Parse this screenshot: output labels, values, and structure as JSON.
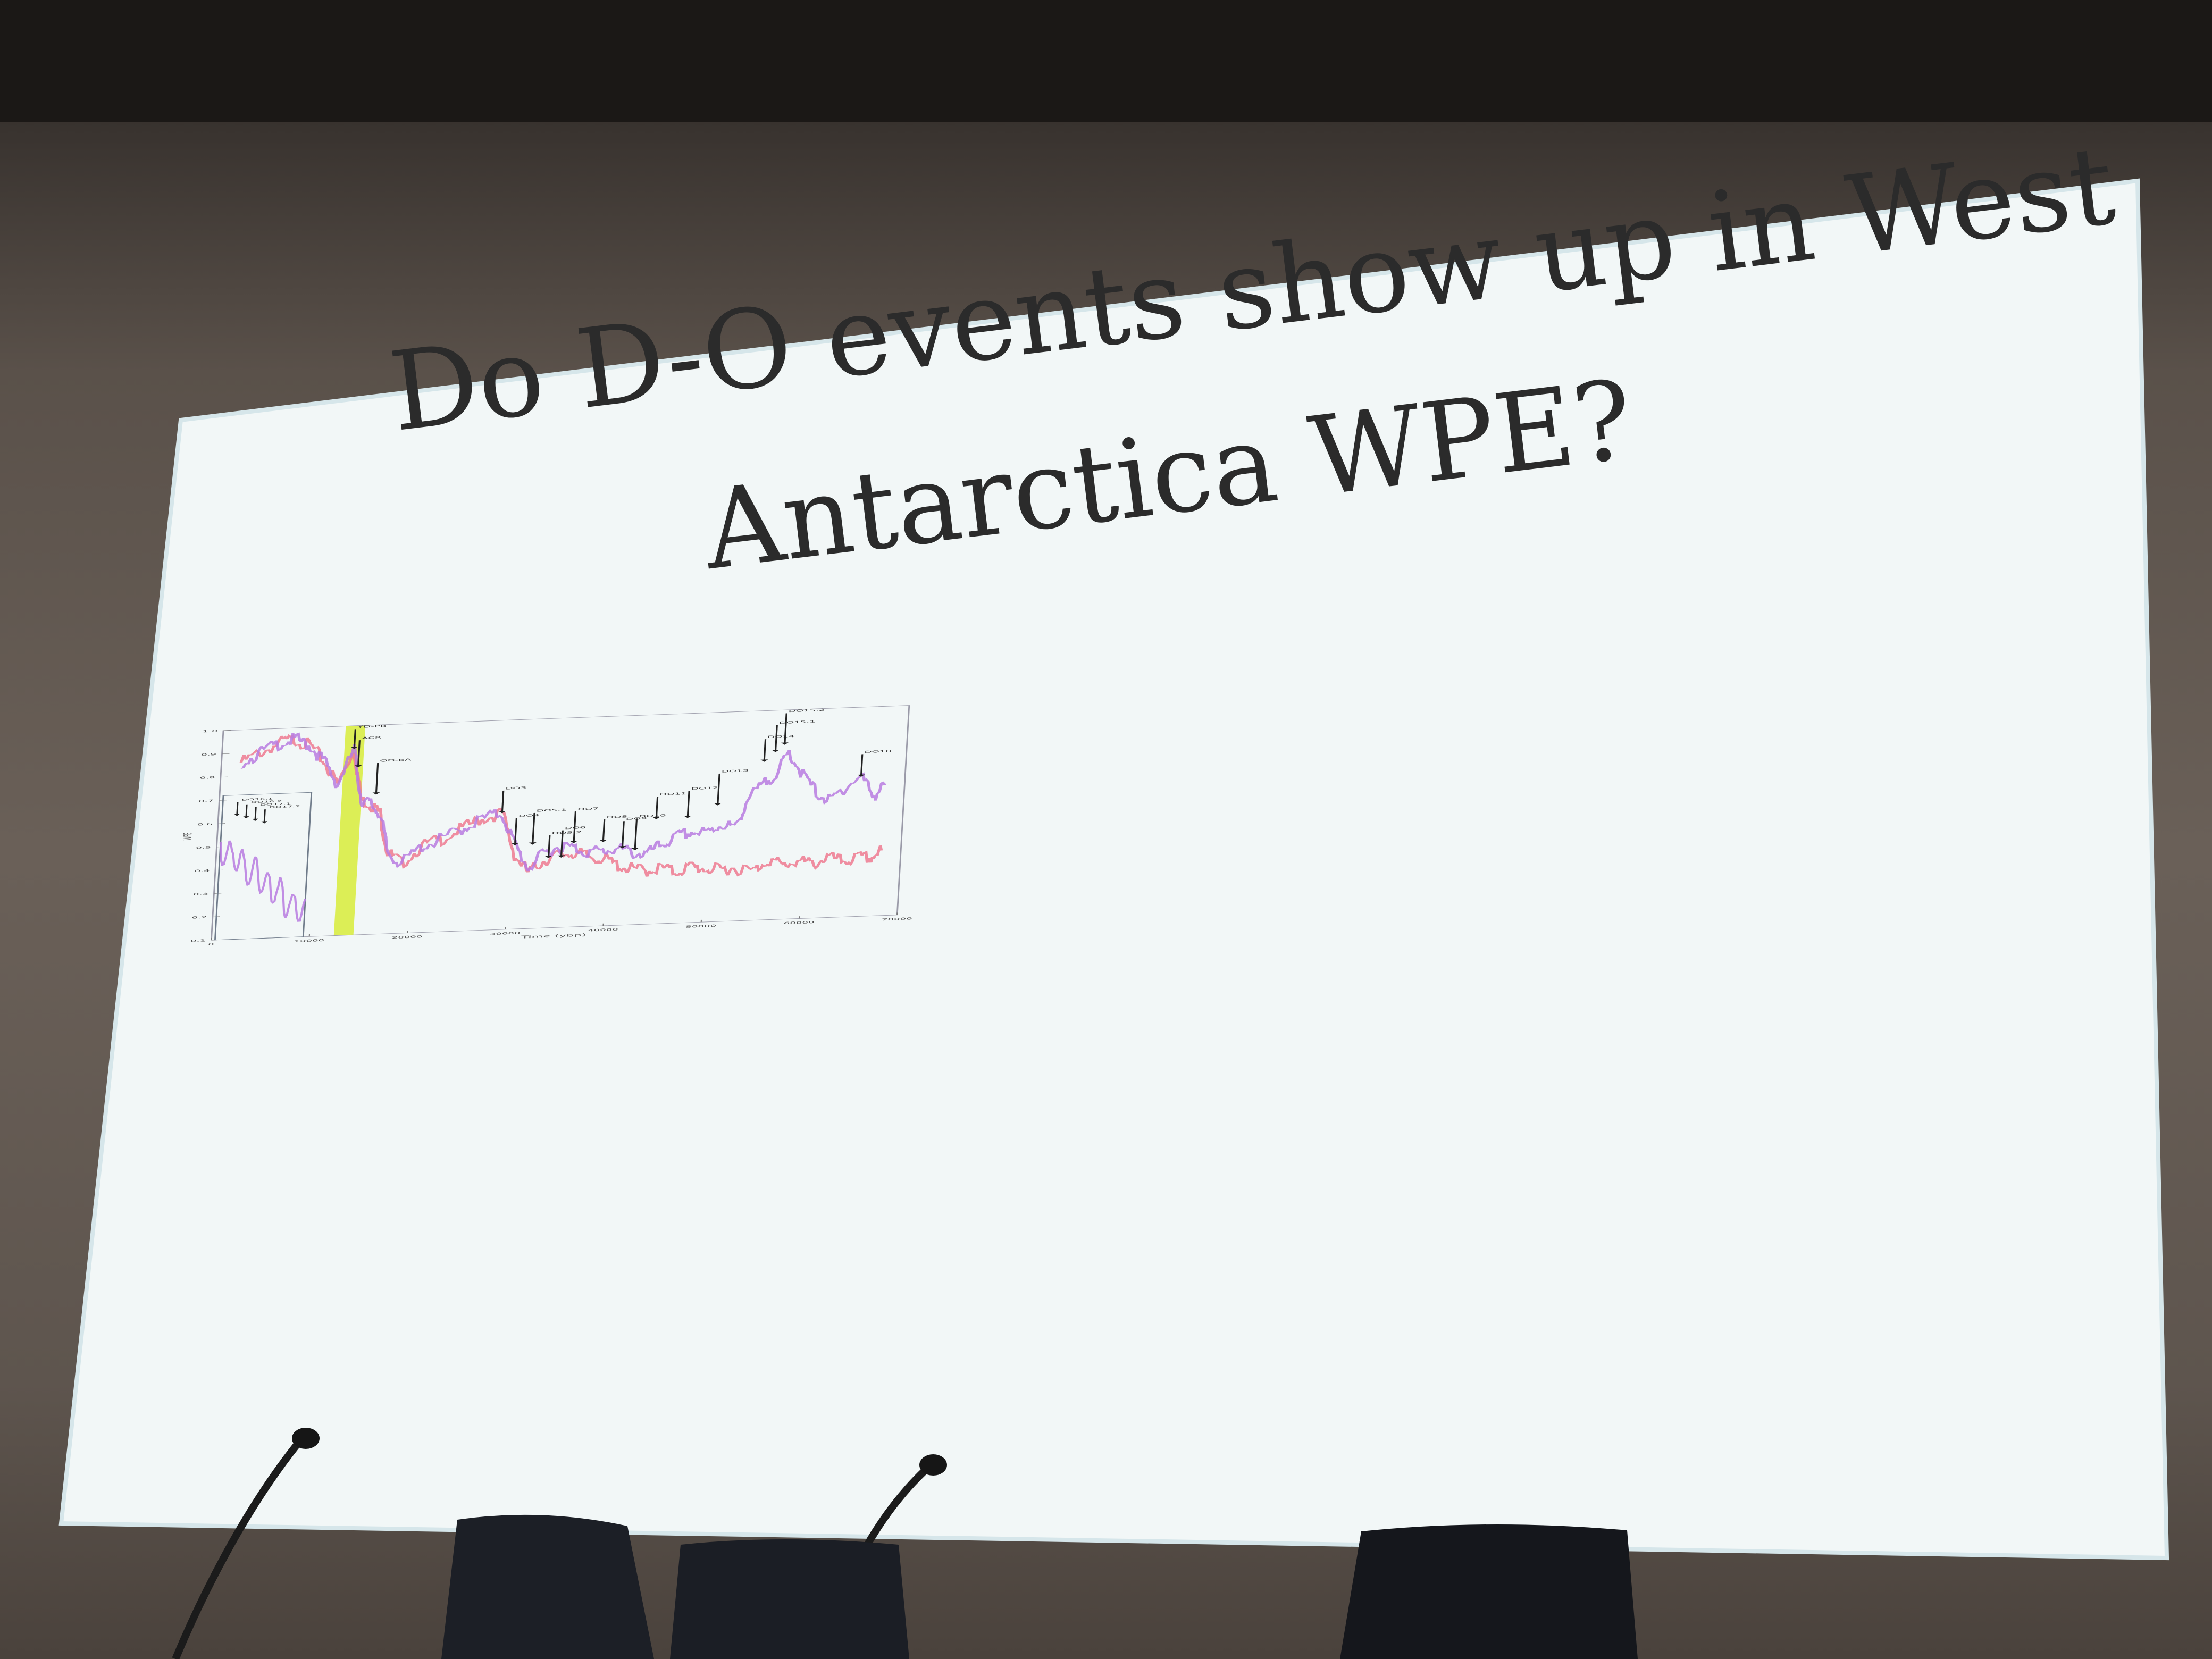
{
  "slide": {
    "title_line1": "Do D-O events show up in West",
    "title_line2": "Antarctica WPE?"
  },
  "chart_data": {
    "type": "line",
    "xlabel": "Time (ybp)",
    "ylabel": "WPE",
    "xlim": [
      0,
      70000
    ],
    "ylim": [
      0.1,
      1.0
    ],
    "xticks": [
      0,
      10000,
      20000,
      30000,
      40000,
      50000,
      60000,
      70000
    ],
    "yticks": [
      0.1,
      0.2,
      0.3,
      0.4,
      0.5,
      0.6,
      0.7,
      0.8,
      0.9,
      1.0
    ],
    "series": [
      {
        "color": "#ee7a90",
        "x": [
          2000,
          4000,
          6000,
          7500,
          9000,
          10500,
          12000,
          13500,
          14500,
          15500,
          16500,
          17500,
          19000,
          21000,
          23000,
          25000,
          27000,
          29000,
          30500,
          32000,
          33500,
          35000,
          36500,
          38000,
          39500,
          41000,
          42500,
          44000,
          45500,
          47000,
          48500,
          50000,
          51500,
          53000,
          55000,
          56500,
          58000,
          59500,
          61000,
          62500,
          64000,
          65500,
          67000,
          68000
        ],
        "y": [
          0.86,
          0.9,
          0.94,
          0.95,
          0.92,
          0.85,
          0.75,
          0.9,
          0.68,
          0.66,
          0.62,
          0.45,
          0.4,
          0.47,
          0.5,
          0.54,
          0.58,
          0.6,
          0.42,
          0.34,
          0.39,
          0.41,
          0.42,
          0.4,
          0.39,
          0.36,
          0.34,
          0.33,
          0.34,
          0.32,
          0.34,
          0.33,
          0.32,
          0.33,
          0.31,
          0.36,
          0.33,
          0.35,
          0.33,
          0.36,
          0.34,
          0.35,
          0.35,
          0.38
        ]
      },
      {
        "color": "#b87be0",
        "x": [
          2000,
          4000,
          6000,
          7500,
          9000,
          10500,
          12000,
          13500,
          14500,
          15500,
          16500,
          17500,
          19000,
          21000,
          23000,
          25000,
          27000,
          29000,
          30500,
          32000,
          33500,
          35000,
          36500,
          38000,
          39500,
          41000,
          42500,
          44000,
          45500,
          47000,
          48500,
          50000,
          51500,
          53000,
          54000,
          55500,
          57000,
          58000,
          59500,
          61000,
          62500,
          64000,
          65500,
          67000,
          68000
        ],
        "y": [
          0.86,
          0.9,
          0.94,
          0.95,
          0.92,
          0.85,
          0.75,
          0.9,
          0.68,
          0.66,
          0.62,
          0.45,
          0.4,
          0.47,
          0.5,
          0.54,
          0.58,
          0.6,
          0.46,
          0.36,
          0.42,
          0.45,
          0.44,
          0.42,
          0.42,
          0.43,
          0.41,
          0.4,
          0.44,
          0.47,
          0.49,
          0.48,
          0.52,
          0.5,
          0.62,
          0.68,
          0.74,
          0.82,
          0.72,
          0.64,
          0.6,
          0.66,
          0.7,
          0.62,
          0.66
        ]
      }
    ],
    "shaded_region": {
      "x": [
        12500,
        14500
      ],
      "color": "#d8ec3a"
    },
    "annotations": [
      {
        "label": "YD-PB",
        "x": 13500,
        "y": 0.9
      },
      {
        "label": "ACR",
        "x": 14000,
        "y": 0.82
      },
      {
        "label": "OD-BA",
        "x": 16000,
        "y": 0.7
      },
      {
        "label": "DO3",
        "x": 29000,
        "y": 0.6
      },
      {
        "label": "DO4",
        "x": 30500,
        "y": 0.46
      },
      {
        "label": "DO5.1",
        "x": 32300,
        "y": 0.46
      },
      {
        "label": "DO5.2",
        "x": 34000,
        "y": 0.4
      },
      {
        "label": "DO6",
        "x": 35300,
        "y": 0.4
      },
      {
        "label": "DO7",
        "x": 36500,
        "y": 0.46
      },
      {
        "label": "DO8",
        "x": 39500,
        "y": 0.46
      },
      {
        "label": "DO9",
        "x": 41500,
        "y": 0.43
      },
      {
        "label": "DO10",
        "x": 42800,
        "y": 0.42
      },
      {
        "label": "DO11",
        "x": 44800,
        "y": 0.55
      },
      {
        "label": "DO12",
        "x": 48000,
        "y": 0.55
      },
      {
        "label": "DO13",
        "x": 51000,
        "y": 0.6
      },
      {
        "label": "DO14",
        "x": 55500,
        "y": 0.78
      },
      {
        "label": "DO15.1",
        "x": 56600,
        "y": 0.82
      },
      {
        "label": "DO15.2",
        "x": 57500,
        "y": 0.85
      },
      {
        "label": "DO18",
        "x": 65500,
        "y": 0.7
      }
    ],
    "inset": {
      "labels": [
        "DO16.1",
        "DO16.2",
        "DO17.1",
        "DO17.2"
      ],
      "arrow_series_x": [
        3800,
        4200,
        5000,
        5400
      ]
    },
    "legend": "none",
    "grid": false
  }
}
